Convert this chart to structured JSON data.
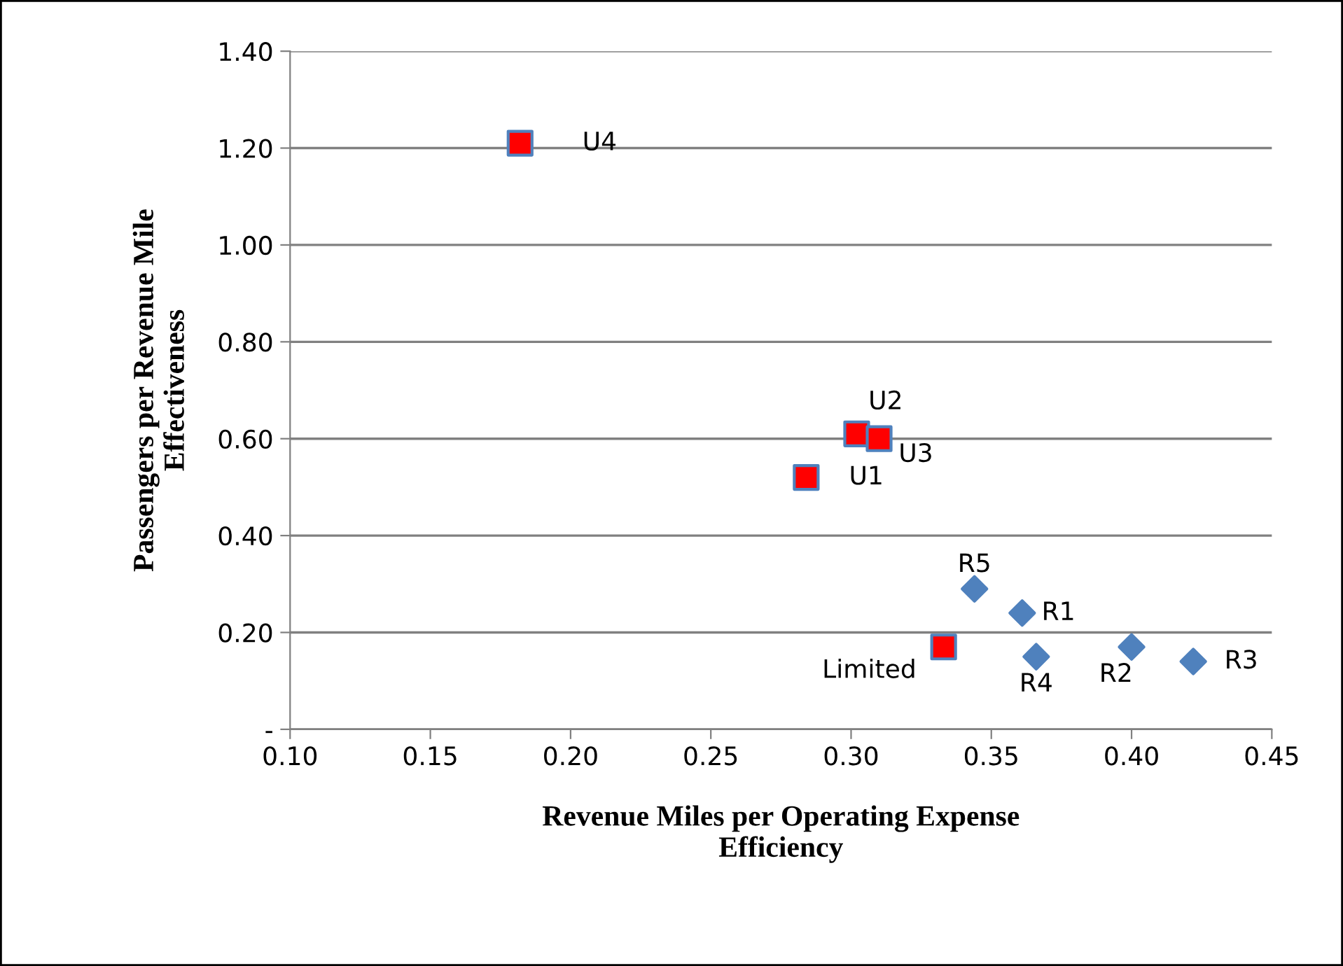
{
  "chart_data": {
    "type": "scatter",
    "xlabel": "Revenue Miles per Operating Expense\nEfficiency",
    "ylabel": "Passengers per Revenue Mile\nEffectiveness",
    "xlim": [
      0.1,
      0.45
    ],
    "xticks": [
      {
        "value": 0.1,
        "label": "0.10"
      },
      {
        "value": 0.15,
        "label": "0.15"
      },
      {
        "value": 0.2,
        "label": "0.20"
      },
      {
        "value": 0.25,
        "label": "0.25"
      },
      {
        "value": 0.3,
        "label": "0.30"
      },
      {
        "value": 0.35,
        "label": "0.35"
      },
      {
        "value": 0.4,
        "label": "0.40"
      },
      {
        "value": 0.45,
        "label": "0.45"
      }
    ],
    "ylim": [
      0,
      1.4
    ],
    "yticks": [
      {
        "value": 0,
        "label": "-"
      },
      {
        "value": 0.2,
        "label": "0.20"
      },
      {
        "value": 0.4,
        "label": "0.40"
      },
      {
        "value": 0.6,
        "label": "0.60"
      },
      {
        "value": 0.8,
        "label": "0.80"
      },
      {
        "value": 1.0,
        "label": "1.00"
      },
      {
        "value": 1.2,
        "label": "1.20"
      },
      {
        "value": 1.4,
        "label": "1.40"
      }
    ],
    "grid": "y",
    "legend": false,
    "series": [
      {
        "color": "#ff0000",
        "marker": "square",
        "x": [
          0.182,
          0.302,
          0.31,
          0.284,
          0.333
        ],
        "values": [
          1.21,
          0.61,
          0.6,
          0.52,
          0.17
        ]
      },
      {
        "color": "#4f81bd",
        "marker": "diamond",
        "x": [
          0.344,
          0.361,
          0.366,
          0.4,
          0.422
        ],
        "values": [
          0.29,
          0.24,
          0.15,
          0.17,
          0.14
        ]
      }
    ],
    "annotations": [
      {
        "text": "U4",
        "x": 0.182,
        "y": 1.21
      },
      {
        "text": "U2",
        "x": 0.302,
        "y": 0.61
      },
      {
        "text": "U3",
        "x": 0.31,
        "y": 0.6
      },
      {
        "text": "U1",
        "x": 0.284,
        "y": 0.52
      },
      {
        "text": "Limited",
        "x": 0.333,
        "y": 0.17
      },
      {
        "text": "R5",
        "x": 0.344,
        "y": 0.29
      },
      {
        "text": "R1",
        "x": 0.361,
        "y": 0.24
      },
      {
        "text": "R4",
        "x": 0.366,
        "y": 0.15
      },
      {
        "text": "R2",
        "x": 0.4,
        "y": 0.17
      },
      {
        "text": "R3",
        "x": 0.422,
        "y": 0.14
      }
    ]
  }
}
